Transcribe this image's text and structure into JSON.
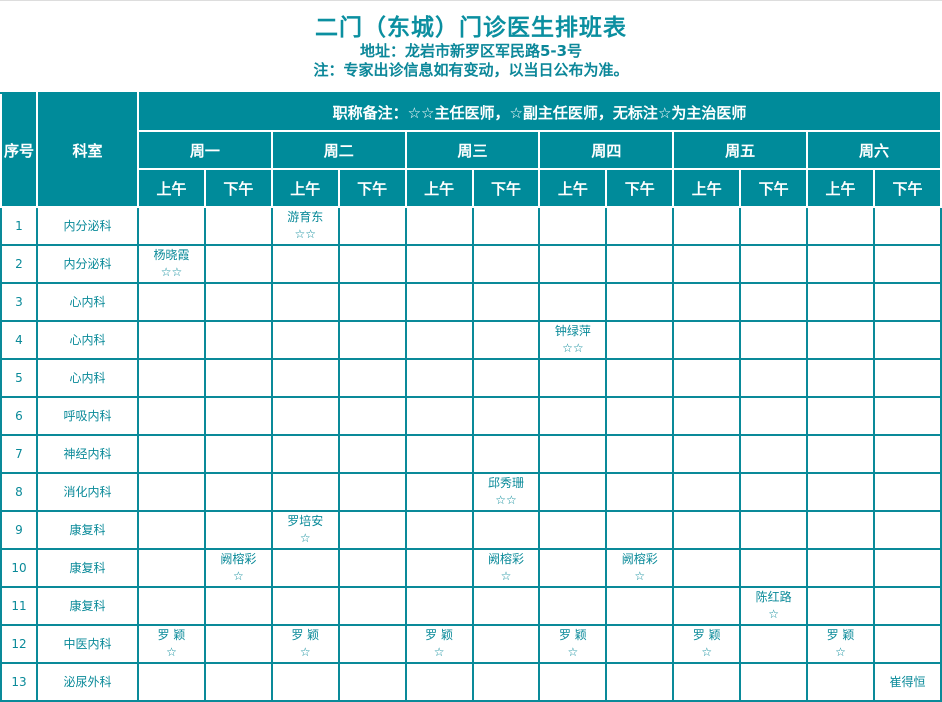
{
  "header": {
    "title": "二门（东城）门诊医生排班表",
    "address": "地址：龙岩市新罗区军民路5-3号",
    "note": "注：专家出诊信息如有变动，以当日公布为准。"
  },
  "table": {
    "col_no": "序号",
    "col_dept": "科室",
    "legend": "职称备注：☆☆主任医师，☆副主任医师，无标注☆为主治医师",
    "days": [
      "周一",
      "周二",
      "周三",
      "周四",
      "周五",
      "周六"
    ],
    "am": "上午",
    "pm": "下午",
    "rows": [
      {
        "no": "1",
        "dept": "内分泌科",
        "cells": [
          null,
          null,
          {
            "name": "游育东",
            "stars": "☆☆"
          },
          null,
          null,
          null,
          null,
          null,
          null,
          null,
          null,
          null
        ]
      },
      {
        "no": "2",
        "dept": "内分泌科",
        "cells": [
          {
            "name": "杨晓霞",
            "stars": "☆☆"
          },
          null,
          null,
          null,
          null,
          null,
          null,
          null,
          null,
          null,
          null,
          null
        ]
      },
      {
        "no": "3",
        "dept": "心内科",
        "cells": [
          null,
          null,
          null,
          null,
          null,
          null,
          null,
          null,
          null,
          null,
          null,
          null
        ]
      },
      {
        "no": "4",
        "dept": "心内科",
        "cells": [
          null,
          null,
          null,
          null,
          null,
          null,
          {
            "name": "钟绿萍",
            "stars": "☆☆"
          },
          null,
          null,
          null,
          null,
          null
        ]
      },
      {
        "no": "5",
        "dept": "心内科",
        "cells": [
          null,
          null,
          null,
          null,
          null,
          null,
          null,
          null,
          null,
          null,
          null,
          null
        ]
      },
      {
        "no": "6",
        "dept": "呼吸内科",
        "cells": [
          null,
          null,
          null,
          null,
          null,
          null,
          null,
          null,
          null,
          null,
          null,
          null
        ]
      },
      {
        "no": "7",
        "dept": "神经内科",
        "cells": [
          null,
          null,
          null,
          null,
          null,
          null,
          null,
          null,
          null,
          null,
          null,
          null
        ]
      },
      {
        "no": "8",
        "dept": "消化内科",
        "cells": [
          null,
          null,
          null,
          null,
          null,
          {
            "name": "邱秀珊",
            "stars": "☆☆"
          },
          null,
          null,
          null,
          null,
          null,
          null
        ]
      },
      {
        "no": "9",
        "dept": "康复科",
        "cells": [
          null,
          null,
          {
            "name": "罗培安",
            "stars": "☆"
          },
          null,
          null,
          null,
          null,
          null,
          null,
          null,
          null,
          null
        ]
      },
      {
        "no": "10",
        "dept": "康复科",
        "cells": [
          null,
          {
            "name": "阙榕彩",
            "stars": "☆"
          },
          null,
          null,
          null,
          {
            "name": "阙榕彩",
            "stars": "☆"
          },
          null,
          {
            "name": "阙榕彩",
            "stars": "☆"
          },
          null,
          null,
          null,
          null
        ]
      },
      {
        "no": "11",
        "dept": "康复科",
        "cells": [
          null,
          null,
          null,
          null,
          null,
          null,
          null,
          null,
          null,
          {
            "name": "陈红路",
            "stars": "☆"
          },
          null,
          null
        ]
      },
      {
        "no": "12",
        "dept": "中医内科",
        "cells": [
          {
            "name": "罗 颖",
            "stars": "☆"
          },
          null,
          {
            "name": "罗 颖",
            "stars": "☆"
          },
          null,
          {
            "name": "罗 颖",
            "stars": "☆"
          },
          null,
          {
            "name": "罗 颖",
            "stars": "☆"
          },
          null,
          {
            "name": "罗 颖",
            "stars": "☆"
          },
          null,
          {
            "name": "罗 颖",
            "stars": "☆"
          },
          null
        ]
      },
      {
        "no": "13",
        "dept": "泌尿外科",
        "cells": [
          null,
          null,
          null,
          null,
          null,
          null,
          null,
          null,
          null,
          null,
          null,
          {
            "name": "崔得恒",
            "stars": ""
          }
        ]
      }
    ]
  },
  "colors": {
    "accent": "#008b9a",
    "text": "#0a8a99"
  }
}
